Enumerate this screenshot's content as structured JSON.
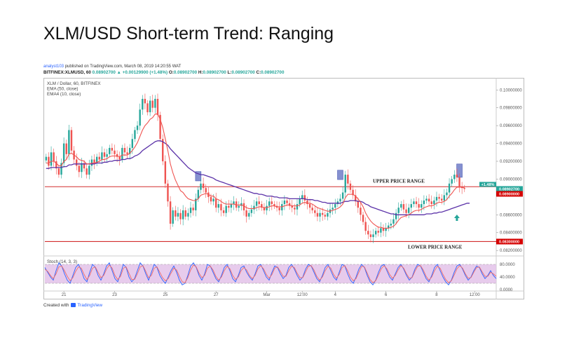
{
  "page_title": "XLM/USD Short-term Trend: Ranging",
  "publish": {
    "author": "analyst103",
    "text": " published on TradingView.com, March 08, 2019 14:20:55 WAT"
  },
  "ohlc": {
    "symbol": "BITFINEX:XLMUSD, 60",
    "price": "0.08902700",
    "change": "+0.00129900 (+1.48%)",
    "o_label": "O:",
    "o": "0.08902700",
    "h_label": "H:",
    "h": "0.08902700",
    "l_label": "L:",
    "l": "0.08902700",
    "c_label": "C:",
    "c": "0.08902700"
  },
  "footer": {
    "created_with": "Created with",
    "brand": "TradingView"
  },
  "chart_data": {
    "type": "candlestick",
    "legend": [
      "XLM / Dollar, 60, BITFINEX",
      "EMA (50, close)",
      "EMA4 (10, close)"
    ],
    "ylim": [
      0.0817,
      0.1012
    ],
    "y_ticks": [
      {
        "v": 0.1,
        "label": "0.10000000"
      },
      {
        "v": 0.098,
        "label": "0.09800000"
      },
      {
        "v": 0.096,
        "label": "0.09600000"
      },
      {
        "v": 0.094,
        "label": "0.09400000"
      },
      {
        "v": 0.092,
        "label": "0.09200000"
      },
      {
        "v": 0.09,
        "label": "0.09000000"
      },
      {
        "v": 0.086,
        "label": "0.08600000"
      },
      {
        "v": 0.084,
        "label": "0.08400000"
      },
      {
        "v": 0.082,
        "label": "0.08200000"
      }
    ],
    "x_ticks": [
      {
        "i": 7,
        "label": "21"
      },
      {
        "i": 27,
        "label": "23"
      },
      {
        "i": 47,
        "label": "25"
      },
      {
        "i": 67,
        "label": "27"
      },
      {
        "i": 87,
        "label": "Mar"
      },
      {
        "i": 101,
        "label": "12:00"
      },
      {
        "i": 114,
        "label": "4"
      },
      {
        "i": 134,
        "label": "6"
      },
      {
        "i": 154,
        "label": "8"
      },
      {
        "i": 169,
        "label": "12:00"
      }
    ],
    "n_slots": 178,
    "close": [
      0.0925,
      0.0915,
      0.093,
      0.092,
      0.0912,
      0.0905,
      0.0918,
      0.094,
      0.0928,
      0.0955,
      0.0932,
      0.0922,
      0.0915,
      0.0908,
      0.0918,
      0.0912,
      0.0905,
      0.0915,
      0.0922,
      0.0918,
      0.0925,
      0.0922,
      0.093,
      0.0925,
      0.0928,
      0.0935,
      0.0932,
      0.0928,
      0.0925,
      0.0922,
      0.0935,
      0.093,
      0.0928,
      0.0935,
      0.0945,
      0.0955,
      0.096,
      0.0978,
      0.099,
      0.0985,
      0.0975,
      0.0988,
      0.098,
      0.099,
      0.0972,
      0.0945,
      0.092,
      0.0895,
      0.0875,
      0.085,
      0.0865,
      0.0858,
      0.0862,
      0.0855,
      0.0865,
      0.0858,
      0.0862,
      0.0868,
      0.0865,
      0.0878,
      0.0888,
      0.0895,
      0.089,
      0.0885,
      0.088,
      0.0875,
      0.0878,
      0.0868,
      0.0872,
      0.0865,
      0.0862,
      0.087,
      0.0868,
      0.0872,
      0.0875,
      0.0868,
      0.087,
      0.0873,
      0.0865,
      0.0858,
      0.0862,
      0.0866,
      0.087,
      0.0875,
      0.0872,
      0.0868,
      0.0865,
      0.087,
      0.0875,
      0.0872,
      0.087,
      0.0868,
      0.0865,
      0.0872,
      0.0876,
      0.0873,
      0.087,
      0.0868,
      0.0866,
      0.0872,
      0.0878,
      0.0882,
      0.0876,
      0.0872,
      0.0868,
      0.0865,
      0.0862,
      0.0858,
      0.0862,
      0.086,
      0.0858,
      0.0862,
      0.0866,
      0.0868,
      0.0872,
      0.0875,
      0.0878,
      0.0885,
      0.0905,
      0.0895,
      0.0888,
      0.0882,
      0.0875,
      0.0868,
      0.086,
      0.0852,
      0.0842,
      0.0838,
      0.0835,
      0.0838,
      0.0842,
      0.084,
      0.0845,
      0.0842,
      0.0845,
      0.0848,
      0.085,
      0.0855,
      0.0862,
      0.0868,
      0.0872,
      0.0866,
      0.0862,
      0.0868,
      0.0872,
      0.0875,
      0.0872,
      0.0868,
      0.0872,
      0.0876,
      0.0878,
      0.0875,
      0.0872,
      0.0876,
      0.088,
      0.0878,
      0.0876,
      0.0882,
      0.0885,
      0.0895,
      0.09,
      0.0905,
      0.0902,
      0.0891,
      0.089,
      0.0889
    ],
    "ema10_close": [
      0.0918,
      0.0918,
      0.092,
      0.092,
      0.0918,
      0.0915,
      0.0915,
      0.092,
      0.0922,
      0.0928,
      0.0929,
      0.0927,
      0.0925,
      0.0922,
      0.0921,
      0.092,
      0.0917,
      0.0917,
      0.0918,
      0.0918,
      0.0919,
      0.092,
      0.0922,
      0.0922,
      0.0923,
      0.0925,
      0.0926,
      0.0926,
      0.0926,
      0.0925,
      0.0927,
      0.0927,
      0.0927,
      0.0929,
      0.0932,
      0.0936,
      0.0941,
      0.0948,
      0.0955,
      0.096,
      0.0963,
      0.0967,
      0.0969,
      0.0973,
      0.0973,
      0.0967,
      0.0958,
      0.0945,
      0.0932,
      0.0917,
      0.0907,
      0.0899,
      0.0893,
      0.0887,
      0.0885,
      0.0881,
      0.0878,
      0.0877,
      0.0876,
      0.0876,
      0.0878,
      0.0882,
      0.0883,
      0.0884,
      0.0883,
      0.0881,
      0.0881,
      0.0878,
      0.0877,
      0.0875,
      0.0873,
      0.0872,
      0.0872,
      0.0872,
      0.0872,
      0.0871,
      0.0871,
      0.0871,
      0.087,
      0.0868,
      0.0867,
      0.0867,
      0.0867,
      0.0868,
      0.0869,
      0.0869,
      0.0868,
      0.0868,
      0.0869,
      0.087,
      0.087,
      0.0869,
      0.0869,
      0.0869,
      0.087,
      0.0871,
      0.0871,
      0.087,
      0.087,
      0.087,
      0.0871,
      0.0873,
      0.0874,
      0.0873,
      0.0873,
      0.0872,
      0.087,
      0.0868,
      0.0867,
      0.0866,
      0.0865,
      0.0864,
      0.0864,
      0.0865,
      0.0866,
      0.0867,
      0.0869,
      0.0872,
      0.0879,
      0.0883,
      0.0883,
      0.0883,
      0.0881,
      0.0878,
      0.0874,
      0.0869,
      0.0862,
      0.0857,
      0.0853,
      0.085,
      0.0848,
      0.0846,
      0.0846,
      0.0845,
      0.0845,
      0.0845,
      0.0846,
      0.0847,
      0.085,
      0.0854,
      0.0857,
      0.0858,
      0.0859,
      0.086,
      0.0862,
      0.0864,
      0.0865,
      0.0865,
      0.0866,
      0.0868,
      0.0869,
      0.087,
      0.087,
      0.0871,
      0.0873,
      0.0874,
      0.0874,
      0.0875,
      0.0877,
      0.0881,
      0.0884,
      0.0888,
      0.0891,
      0.0891,
      0.0891,
      0.089
    ],
    "ema50_close": [
      0.0912,
      0.0912,
      0.0913,
      0.0913,
      0.0913,
      0.0913,
      0.0913,
      0.0914,
      0.0914,
      0.0916,
      0.0916,
      0.0917,
      0.0917,
      0.0917,
      0.0917,
      0.0917,
      0.0917,
      0.0917,
      0.0917,
      0.0917,
      0.0918,
      0.0918,
      0.0918,
      0.0919,
      0.0919,
      0.092,
      0.092,
      0.0921,
      0.0921,
      0.0921,
      0.0922,
      0.0922,
      0.0923,
      0.0923,
      0.0924,
      0.0926,
      0.0927,
      0.0929,
      0.0932,
      0.0934,
      0.0936,
      0.0938,
      0.094,
      0.0942,
      0.0943,
      0.0943,
      0.0942,
      0.094,
      0.0938,
      0.0934,
      0.0931,
      0.0928,
      0.0925,
      0.0922,
      0.0919,
      0.0916,
      0.0913,
      0.0911,
      0.0909,
      0.0907,
      0.0906,
      0.0905,
      0.0905,
      0.0904,
      0.0903,
      0.0902,
      0.0901,
      0.0899,
      0.0898,
      0.0897,
      0.0896,
      0.0895,
      0.0894,
      0.0893,
      0.0892,
      0.0891,
      0.089,
      0.0889,
      0.0888,
      0.0887,
      0.0886,
      0.0885,
      0.0884,
      0.0884,
      0.0883,
      0.0883,
      0.0882,
      0.0881,
      0.0881,
      0.0881,
      0.088,
      0.088,
      0.0879,
      0.0879,
      0.0879,
      0.0879,
      0.0878,
      0.0878,
      0.0878,
      0.0878,
      0.0878,
      0.0878,
      0.0878,
      0.0877,
      0.0877,
      0.0877,
      0.0876,
      0.0876,
      0.0875,
      0.0874,
      0.0874,
      0.0873,
      0.0873,
      0.0873,
      0.0873,
      0.0873,
      0.0873,
      0.0874,
      0.0875,
      0.0875,
      0.0876,
      0.0876,
      0.0876,
      0.0875,
      0.0875,
      0.0874,
      0.0872,
      0.0871,
      0.0869,
      0.0868,
      0.0867,
      0.0866,
      0.0865,
      0.0864,
      0.0863,
      0.0862,
      0.0861,
      0.0861,
      0.086,
      0.086,
      0.086,
      0.086,
      0.086,
      0.086,
      0.086,
      0.086,
      0.086,
      0.086,
      0.086,
      0.086,
      0.0861,
      0.0861,
      0.0861,
      0.0862,
      0.0862,
      0.0863,
      0.0863,
      0.0864,
      0.0865,
      0.0866,
      0.0867,
      0.0868,
      0.0869,
      0.087,
      0.0871,
      0.0872,
      0.0873,
      0.0873
    ],
    "stoch_k": [
      70,
      55,
      40,
      30,
      60,
      85,
      75,
      50,
      30,
      20,
      45,
      70,
      80,
      60,
      35,
      25,
      55,
      80,
      70,
      45,
      30,
      50,
      75,
      85,
      60,
      35,
      25,
      50,
      80,
      70,
      40,
      25,
      35,
      60,
      85,
      75,
      50,
      30,
      55,
      80,
      70,
      45,
      30,
      20,
      40,
      60,
      75,
      55,
      30,
      15,
      20,
      45,
      75,
      85,
      70,
      45,
      30,
      50,
      80,
      75,
      55,
      35,
      25,
      45,
      70,
      80,
      60,
      35,
      25,
      45,
      70,
      75,
      55,
      40,
      30,
      50,
      75,
      80,
      60,
      40,
      30,
      55,
      75,
      70,
      50,
      35,
      45,
      70,
      80,
      65,
      45,
      30,
      40,
      65,
      80,
      75,
      55,
      35,
      25,
      45,
      70,
      80,
      60,
      40,
      30,
      55,
      80,
      75,
      50,
      30,
      20,
      40,
      65,
      80,
      70,
      45,
      25,
      15,
      30,
      55,
      75,
      80,
      60,
      40,
      30,
      50,
      70,
      80,
      65,
      45,
      30,
      40,
      65,
      80,
      75,
      55,
      35,
      25,
      45,
      70,
      80,
      60,
      40,
      25,
      15,
      30,
      55,
      75,
      80,
      65,
      45,
      30,
      40,
      60,
      75,
      70,
      50,
      35,
      45,
      60,
      45,
      35
    ],
    "stoch_d": [
      65,
      58,
      45,
      35,
      50,
      72,
      75,
      60,
      42,
      28,
      38,
      58,
      72,
      68,
      48,
      32,
      45,
      68,
      72,
      55,
      38,
      45,
      65,
      78,
      68,
      45,
      32,
      42,
      68,
      72,
      52,
      32,
      32,
      50,
      72,
      76,
      58,
      38,
      45,
      68,
      72,
      55,
      38,
      28,
      35,
      52,
      68,
      62,
      42,
      25,
      22,
      38,
      62,
      78,
      72,
      52,
      38,
      45,
      68,
      75,
      62,
      42,
      30,
      40,
      60,
      74,
      66,
      45,
      32,
      40,
      60,
      70,
      62,
      45,
      35,
      45,
      66,
      76,
      66,
      48,
      36,
      48,
      68,
      72,
      58,
      42,
      42,
      60,
      74,
      70,
      52,
      38,
      38,
      56,
      74,
      76,
      62,
      42,
      30,
      40,
      60,
      74,
      68,
      48,
      36,
      48,
      70,
      76,
      60,
      40,
      28,
      35,
      55,
      74,
      72,
      52,
      32,
      22,
      28,
      46,
      66,
      76,
      66,
      48,
      36,
      45,
      62,
      76,
      68,
      50,
      36,
      38,
      58,
      74,
      76,
      62,
      42,
      30,
      40,
      60,
      74,
      68,
      48,
      32,
      22,
      28,
      46,
      66,
      76,
      68,
      50,
      36,
      38,
      55,
      70,
      72,
      56,
      42,
      42,
      55,
      50,
      42
    ],
    "stoch_panel": {
      "label": "Stoch (14, 3, 3)",
      "band": [
        20,
        80
      ],
      "ticks": [
        {
          "v": 80,
          "label": "80.0000"
        },
        {
          "v": 40,
          "label": "40.0000"
        },
        {
          "v": 0,
          "label": "0.0000"
        }
      ]
    },
    "upper_price_range": {
      "label": "UPPER PRICE RANGE",
      "value": 0.08915
    },
    "lower_price_range": {
      "label": "LOWER PRICE RANGE",
      "value": 0.083,
      "badge": "0.08300000"
    },
    "current_price_badge": {
      "change": "+1.48%",
      "price": "0.08902700"
    },
    "range_badge": "0.08900000",
    "highlight_boxes": [
      {
        "i": 60,
        "low": 0.0898,
        "high": 0.09085
      },
      {
        "i": 116,
        "low": 0.08995,
        "high": 0.091
      },
      {
        "i": 163,
        "low": 0.0902,
        "high": 0.0917
      }
    ],
    "up_arrow_index": 162,
    "colors": {
      "up": "#26a69a",
      "down": "#ef5350",
      "ema10": "#ef5350",
      "ema50": "#5b32a8",
      "range_line": "#d32f2f",
      "box": "#5c6bc0",
      "stoch_k": "#2962ff",
      "stoch_d": "#ef6c6c",
      "stoch_band": "#e1bee7",
      "up_arrow": "#26a69a",
      "badge_green": "#26a69a",
      "badge_red": "#d50000"
    }
  }
}
